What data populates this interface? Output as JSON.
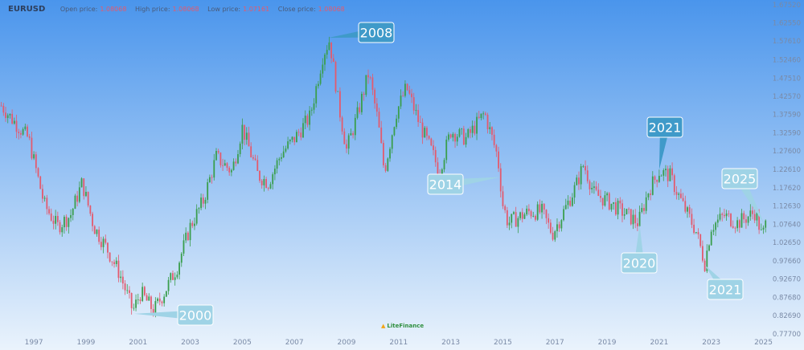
{
  "header": {
    "symbol": "EURUSD",
    "open_label": "Open price:",
    "open_value": "1.08068",
    "high_label": "High price:",
    "high_value": "1.08068",
    "low_label": "Low price:",
    "low_value": "1.07161",
    "close_label": "Close price:",
    "close_value": "1.08068"
  },
  "logo": {
    "text": "LiteFinance"
  },
  "colors": {
    "bg_top": "#4a95ec",
    "bg_bottom": "#eaf3fc",
    "up_candle": "#3a9e4d",
    "down_candle": "#e35a6e",
    "callout_dark": "#3f9ac9",
    "callout_light": "#9fd3e6",
    "axis_text": "#7a8aa6"
  },
  "chart_data": {
    "type": "candlestick",
    "title": "EURUSD",
    "x_ticks": [
      "1997",
      "1999",
      "2001",
      "2003",
      "2005",
      "2007",
      "2009",
      "2011",
      "2013",
      "2015",
      "2017",
      "2019",
      "2021",
      "2023",
      "2025"
    ],
    "y_ticks": [
      "1.67520",
      "1.62550",
      "1.57610",
      "1.52460",
      "1.47510",
      "1.42570",
      "1.37590",
      "1.32590",
      "1.27600",
      "1.22610",
      "1.17620",
      "1.12630",
      "1.07640",
      "1.02650",
      "0.97660",
      "0.92670",
      "0.87680",
      "0.82690",
      "0.77700"
    ],
    "xlim": [
      1995.7,
      2025.2
    ],
    "ylim": [
      0.777,
      1.6752
    ],
    "price_path": [
      [
        1995.75,
        1.4
      ],
      [
        1996.2,
        1.36
      ],
      [
        1996.8,
        1.31
      ],
      [
        1997.4,
        1.13
      ],
      [
        1997.9,
        1.07
      ],
      [
        1998.4,
        1.1
      ],
      [
        1998.85,
        1.19
      ],
      [
        1999.3,
        1.07
      ],
      [
        1999.8,
        1.01
      ],
      [
        2000.3,
        0.94
      ],
      [
        2000.8,
        0.84
      ],
      [
        2001.1,
        0.89
      ],
      [
        2001.6,
        0.84
      ],
      [
        2002.0,
        0.89
      ],
      [
        2002.5,
        0.96
      ],
      [
        2003.0,
        1.07
      ],
      [
        2003.5,
        1.14
      ],
      [
        2004.0,
        1.26
      ],
      [
        2004.6,
        1.22
      ],
      [
        2005.0,
        1.34
      ],
      [
        2005.6,
        1.21
      ],
      [
        2006.0,
        1.19
      ],
      [
        2006.5,
        1.27
      ],
      [
        2007.0,
        1.31
      ],
      [
        2007.6,
        1.37
      ],
      [
        2008.1,
        1.54
      ],
      [
        2008.35,
        1.58
      ],
      [
        2008.7,
        1.4
      ],
      [
        2009.0,
        1.28
      ],
      [
        2009.4,
        1.37
      ],
      [
        2009.85,
        1.49
      ],
      [
        2010.2,
        1.36
      ],
      [
        2010.45,
        1.22
      ],
      [
        2010.9,
        1.38
      ],
      [
        2011.3,
        1.45
      ],
      [
        2011.8,
        1.35
      ],
      [
        2012.3,
        1.27
      ],
      [
        2012.55,
        1.22
      ],
      [
        2013.0,
        1.33
      ],
      [
        2013.6,
        1.31
      ],
      [
        2014.3,
        1.38
      ],
      [
        2014.8,
        1.26
      ],
      [
        2015.0,
        1.13
      ],
      [
        2015.2,
        1.08
      ],
      [
        2016.0,
        1.11
      ],
      [
        2016.5,
        1.11
      ],
      [
        2016.9,
        1.05
      ],
      [
        2017.4,
        1.12
      ],
      [
        2017.8,
        1.18
      ],
      [
        2018.1,
        1.24
      ],
      [
        2018.5,
        1.16
      ],
      [
        2019.0,
        1.14
      ],
      [
        2019.6,
        1.11
      ],
      [
        2020.2,
        1.08
      ],
      [
        2020.6,
        1.17
      ],
      [
        2021.0,
        1.22
      ],
      [
        2021.4,
        1.21
      ],
      [
        2021.9,
        1.13
      ],
      [
        2022.4,
        1.06
      ],
      [
        2022.75,
        0.97
      ],
      [
        2023.0,
        1.07
      ],
      [
        2023.5,
        1.1
      ],
      [
        2024.0,
        1.08
      ],
      [
        2024.7,
        1.11
      ],
      [
        2024.95,
        1.04
      ],
      [
        2025.1,
        1.08
      ]
    ],
    "annotations": [
      {
        "text": "2008",
        "year": 2008.3,
        "price": 1.585,
        "style": "dark"
      },
      {
        "text": "2000",
        "year": 2000.85,
        "price": 0.832,
        "style": "light"
      },
      {
        "text": "2014",
        "year": 2014.9,
        "price": 1.205,
        "style": "light"
      },
      {
        "text": "2020",
        "year": 2020.25,
        "price": 1.075,
        "style": "light"
      },
      {
        "text": "2021",
        "year": 2021.0,
        "price": 1.225,
        "style": "dark"
      },
      {
        "text": "2021",
        "year": 2022.75,
        "price": 0.965,
        "style": "light"
      },
      {
        "text": "2025",
        "year": 2025.05,
        "price": 1.075,
        "style": "light"
      }
    ]
  }
}
